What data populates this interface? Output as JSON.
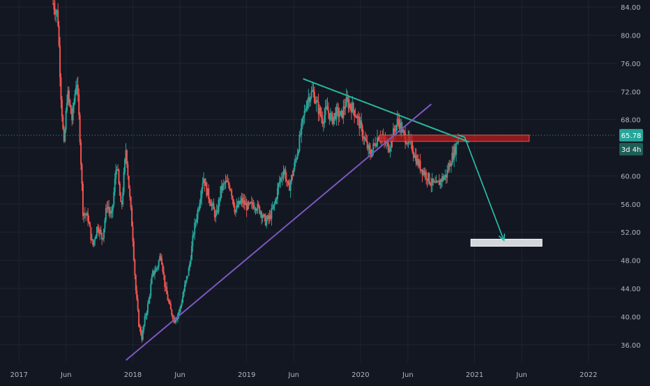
{
  "chart_data": {
    "type": "candlestick",
    "title": "",
    "xlabel": "",
    "ylabel": "",
    "ylim": [
      33.5,
      85
    ],
    "x_range": [
      "2016-11-01",
      "2022-04-01"
    ],
    "grid": true,
    "y_ticks": [
      "36.00",
      "40.00",
      "44.00",
      "48.00",
      "52.00",
      "56.00",
      "60.00",
      "64.00",
      "68.00",
      "72.00",
      "76.00",
      "80.00",
      "84.00"
    ],
    "x_ticks": [
      {
        "date": "2017-01-01",
        "label": "2017"
      },
      {
        "date": "2017-06-01",
        "label": "Jun"
      },
      {
        "date": "2018-01-01",
        "label": "2018"
      },
      {
        "date": "2018-06-01",
        "label": "Jun"
      },
      {
        "date": "2019-01-01",
        "label": "2019"
      },
      {
        "date": "2019-06-01",
        "label": "Jun"
      },
      {
        "date": "2020-01-01",
        "label": "2020"
      },
      {
        "date": "2020-06-01",
        "label": "Jun"
      },
      {
        "date": "2021-01-01",
        "label": "2021"
      },
      {
        "date": "2021-06-01",
        "label": "Jun"
      },
      {
        "date": "2022-01-01",
        "label": "2022"
      }
    ],
    "price_path": [
      [
        "2017-04-20",
        84.5
      ],
      [
        "2017-05-05",
        83.0
      ],
      [
        "2017-05-15",
        72.0
      ],
      [
        "2017-05-25",
        64.0
      ],
      [
        "2017-06-05",
        72.0
      ],
      [
        "2017-06-20",
        68.0
      ],
      [
        "2017-07-05",
        74.0
      ],
      [
        "2017-07-15",
        66.0
      ],
      [
        "2017-07-25",
        55.0
      ],
      [
        "2017-08-10",
        54.0
      ],
      [
        "2017-08-25",
        50.0
      ],
      [
        "2017-09-10",
        53.0
      ],
      [
        "2017-09-25",
        51.0
      ],
      [
        "2017-10-10",
        56.0
      ],
      [
        "2017-10-25",
        54.0
      ],
      [
        "2017-11-10",
        62.0
      ],
      [
        "2017-11-25",
        55.0
      ],
      [
        "2017-12-10",
        64.0
      ],
      [
        "2017-12-20",
        58.0
      ],
      [
        "2017-12-31",
        52.0
      ],
      [
        "2018-01-10",
        44.0
      ],
      [
        "2018-01-20",
        39.0
      ],
      [
        "2018-01-30",
        37.0
      ],
      [
        "2018-02-10",
        40.0
      ],
      [
        "2018-02-20",
        42.0
      ],
      [
        "2018-03-05",
        46.0
      ],
      [
        "2018-03-20",
        47.0
      ],
      [
        "2018-04-01",
        49.0
      ],
      [
        "2018-04-15",
        44.0
      ],
      [
        "2018-05-01",
        41.0
      ],
      [
        "2018-05-15",
        39.5
      ],
      [
        "2018-06-01",
        41.0
      ],
      [
        "2018-06-15",
        44.0
      ],
      [
        "2018-07-01",
        47.0
      ],
      [
        "2018-07-15",
        52.0
      ],
      [
        "2018-08-01",
        56.0
      ],
      [
        "2018-08-15",
        60.0
      ],
      [
        "2018-08-25",
        58.0
      ],
      [
        "2018-09-10",
        56.0
      ],
      [
        "2018-09-25",
        54.0
      ],
      [
        "2018-10-10",
        58.0
      ],
      [
        "2018-10-25",
        59.0
      ],
      [
        "2018-11-10",
        58.5
      ],
      [
        "2018-11-25",
        55.0
      ],
      [
        "2018-12-15",
        56.5
      ],
      [
        "2019-01-05",
        55.5
      ],
      [
        "2019-01-25",
        56.0
      ],
      [
        "2019-02-15",
        55.0
      ],
      [
        "2019-03-01",
        53.5
      ],
      [
        "2019-03-15",
        54.0
      ],
      [
        "2019-04-01",
        56.0
      ],
      [
        "2019-04-15",
        59.0
      ],
      [
        "2019-05-01",
        61.0
      ],
      [
        "2019-05-15",
        58.0
      ],
      [
        "2019-06-01",
        61.0
      ],
      [
        "2019-06-15",
        64.0
      ],
      [
        "2019-07-01",
        68.0
      ],
      [
        "2019-07-15",
        71.0
      ],
      [
        "2019-08-01",
        72.0
      ],
      [
        "2019-08-15",
        70.0
      ],
      [
        "2019-09-01",
        68.0
      ],
      [
        "2019-09-15",
        69.5
      ],
      [
        "2019-10-01",
        68.0
      ],
      [
        "2019-10-15",
        69.0
      ],
      [
        "2019-11-01",
        68.5
      ],
      [
        "2019-11-15",
        70.5
      ],
      [
        "2019-12-01",
        70.0
      ],
      [
        "2019-12-15",
        69.0
      ],
      [
        "2020-01-01",
        67.0
      ],
      [
        "2020-01-15",
        65.0
      ],
      [
        "2020-02-01",
        63.0
      ],
      [
        "2020-02-15",
        64.5
      ],
      [
        "2020-03-01",
        66.0
      ],
      [
        "2020-03-15",
        65.0
      ],
      [
        "2020-04-01",
        64.0
      ],
      [
        "2020-04-15",
        66.0
      ],
      [
        "2020-05-01",
        68.0
      ],
      [
        "2020-05-15",
        66.0
      ],
      [
        "2020-06-01",
        65.0
      ],
      [
        "2020-06-15",
        64.0
      ],
      [
        "2020-07-01",
        62.0
      ],
      [
        "2020-07-15",
        61.0
      ],
      [
        "2020-08-01",
        60.0
      ],
      [
        "2020-08-15",
        59.0
      ],
      [
        "2020-09-01",
        58.5
      ],
      [
        "2020-09-15",
        59.5
      ],
      [
        "2020-10-01",
        60.0
      ],
      [
        "2020-10-15",
        62.0
      ],
      [
        "2020-11-01",
        64.0
      ],
      [
        "2020-11-10",
        65.78
      ]
    ],
    "annotations": {
      "descending_trendline": [
        [
          "2019-07-01",
          73.8
        ],
        [
          "2020-12-15",
          64.8
        ]
      ],
      "ascending_trendline": [
        [
          "2017-12-10",
          33.8
        ],
        [
          "2020-08-15",
          70.2
        ]
      ],
      "resistance_zone": {
        "from": "2020-03-01",
        "to": "2021-06-25",
        "low": 64.9,
        "high": 65.8
      },
      "target_zone": {
        "from": "2020-12-20",
        "to": "2021-08-05",
        "low": 50.0,
        "high": 51.0
      },
      "projection_arrow": [
        [
          "2020-11-10",
          65.8
        ],
        [
          "2020-11-30",
          65.5
        ],
        [
          "2021-04-05",
          50.8
        ]
      ]
    },
    "last_price": {
      "value": 65.78,
      "label": "65.78",
      "countdown": "3d 4h"
    }
  },
  "colors": {
    "background": "#131722",
    "grid": "#1f2431",
    "axis_text": "#b2b5be",
    "up": "#26a69a",
    "down": "#ef5350",
    "descending_trendline": "#26b89a",
    "ascending_trendline": "#7e57c2",
    "resistance_fill": "#b71c1c",
    "resistance_stroke": "#ef5350",
    "target_fill": "#dde1e6",
    "arrow": "#26c6b0",
    "last_price_line": "#26a69a",
    "last_price_badge": "#26a69a"
  }
}
